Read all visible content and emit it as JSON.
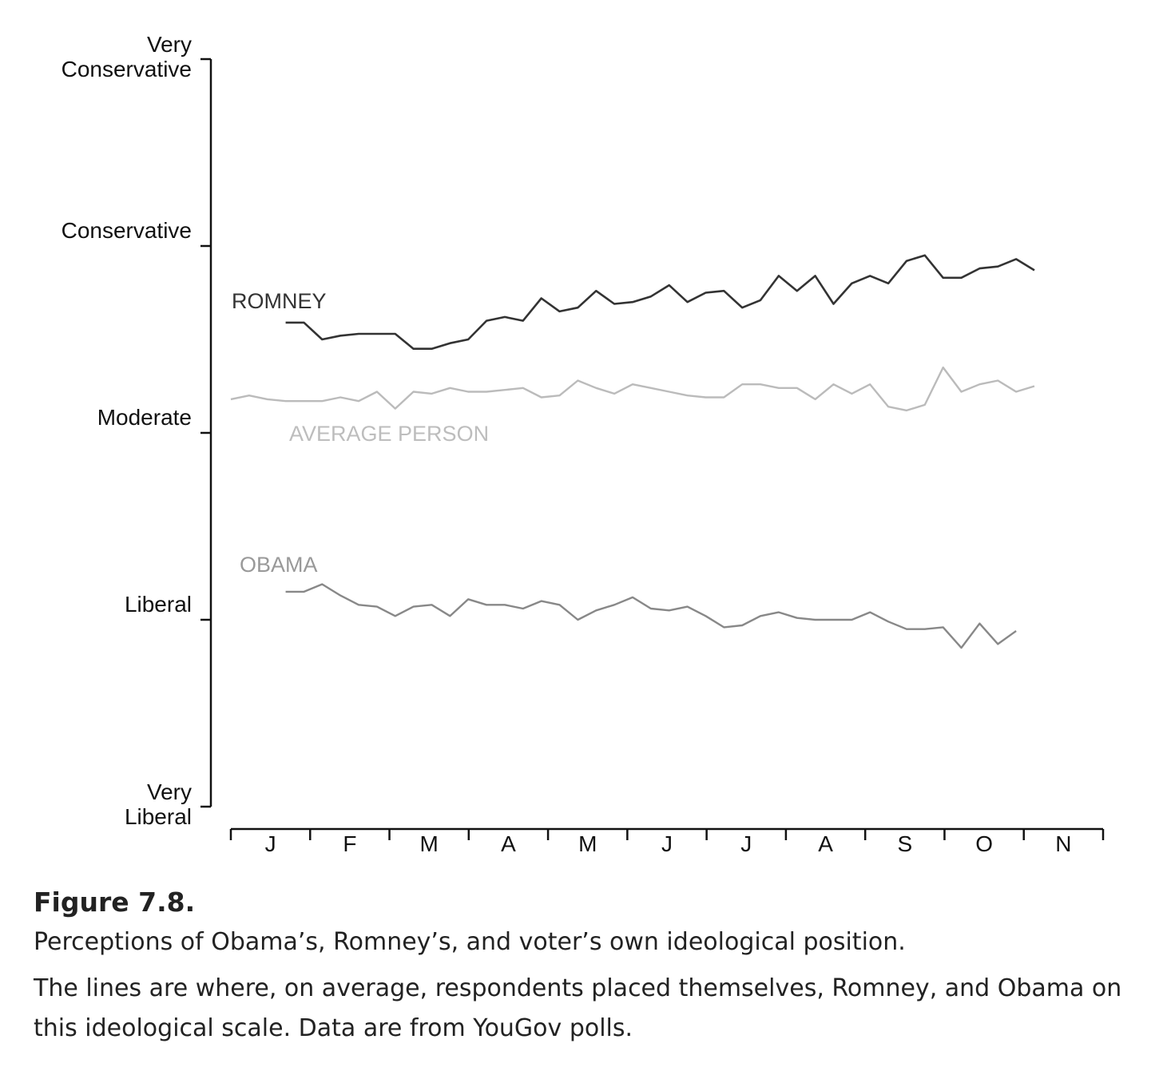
{
  "chart_data": {
    "type": "line",
    "title": "",
    "y_scale_labels": [
      "Very Liberal",
      "Liberal",
      "Moderate",
      "Conservative",
      "Very Conservative"
    ],
    "ylim": [
      1,
      5
    ],
    "x_months": [
      "J",
      "F",
      "M",
      "A",
      "M",
      "J",
      "J",
      "A",
      "S",
      "O",
      "N"
    ],
    "series": [
      {
        "name": "ROMNEY",
        "color": "#333333",
        "values": [
          3.59,
          3.59,
          3.5,
          3.52,
          3.53,
          3.53,
          3.53,
          3.45,
          3.45,
          3.48,
          3.5,
          3.6,
          3.62,
          3.6,
          3.72,
          3.65,
          3.67,
          3.76,
          3.69,
          3.7,
          3.73,
          3.79,
          3.7,
          3.75,
          3.76,
          3.67,
          3.71,
          3.84,
          3.76,
          3.84,
          3.69,
          3.8,
          3.84,
          3.8,
          3.92,
          3.95,
          3.83,
          3.83,
          3.88,
          3.89,
          3.93,
          3.87
        ],
        "start_index": 3
      },
      {
        "name": "AVERAGE PERSON",
        "color": "#bbbbbb",
        "values": [
          3.18,
          3.2,
          3.18,
          3.17,
          3.17,
          3.17,
          3.19,
          3.17,
          3.22,
          3.13,
          3.22,
          3.21,
          3.24,
          3.22,
          3.22,
          3.23,
          3.24,
          3.19,
          3.2,
          3.28,
          3.24,
          3.21,
          3.26,
          3.24,
          3.22,
          3.2,
          3.19,
          3.19,
          3.26,
          3.26,
          3.24,
          3.24,
          3.18,
          3.26,
          3.21,
          3.26,
          3.14,
          3.12,
          3.15,
          3.35,
          3.22,
          3.26,
          3.28,
          3.22,
          3.25
        ],
        "start_index": 0
      },
      {
        "name": "OBAMA",
        "color": "#888888",
        "values": [
          2.15,
          2.15,
          2.19,
          2.13,
          2.08,
          2.07,
          2.02,
          2.07,
          2.08,
          2.02,
          2.11,
          2.08,
          2.08,
          2.06,
          2.1,
          2.08,
          2.0,
          2.05,
          2.08,
          2.12,
          2.06,
          2.05,
          2.07,
          2.02,
          1.96,
          1.97,
          2.02,
          2.04,
          2.01,
          2.0,
          2.0,
          2.0,
          2.04,
          1.99,
          1.95,
          1.95,
          1.96,
          1.85,
          1.98,
          1.87,
          1.94
        ],
        "start_index": 3
      }
    ]
  },
  "caption": {
    "title": "Figure 7.8.",
    "line1": "Perceptions of Obama’s, Romney’s, and voter’s own ideological position.",
    "line2": "The lines are where, on average, respondents placed themselves, Romney, and Obama on this ideological scale. Data are from YouGov polls."
  }
}
